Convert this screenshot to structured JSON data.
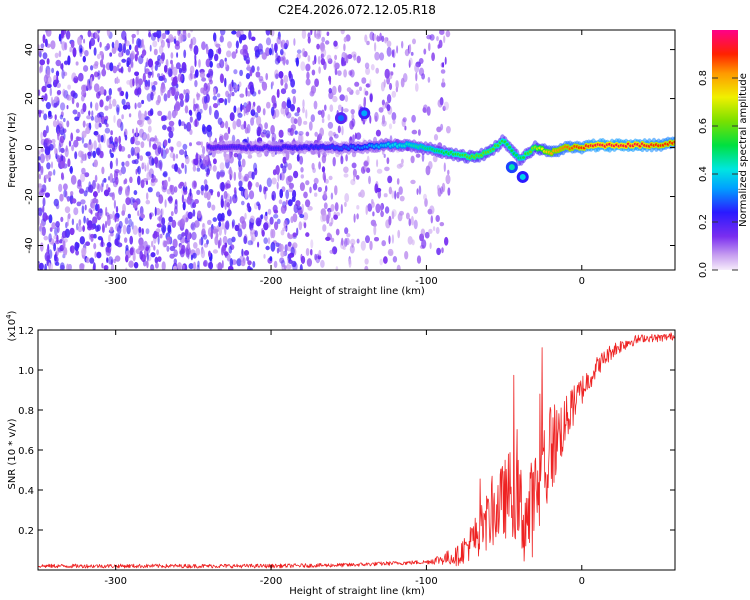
{
  "title": "C2E4.2026.072.12.05.R18",
  "chart_data": [
    {
      "type": "heatmap",
      "xlabel": "Height of straight line (km)",
      "ylabel": "Frequency (Hz)",
      "xlim": [
        -350,
        60
      ],
      "ylim": [
        -50,
        48
      ],
      "xticks": [
        -300,
        -200,
        -100,
        0
      ],
      "yticks": [
        -40,
        -20,
        0,
        20,
        40
      ],
      "colorbar": {
        "label": "Normalized spectral amplitude",
        "range": [
          0,
          1
        ],
        "ticks": [
          "0.0",
          "0.2",
          "0.4",
          "0.6",
          "0.8"
        ]
      },
      "tone_track": [
        {
          "x": -235,
          "y": 0,
          "v": 0.2
        },
        {
          "x": -200,
          "y": 0,
          "v": 0.22
        },
        {
          "x": -170,
          "y": 0,
          "v": 0.25
        },
        {
          "x": -145,
          "y": 0,
          "v": 0.3
        },
        {
          "x": -125,
          "y": 1,
          "v": 0.4
        },
        {
          "x": -110,
          "y": 1,
          "v": 0.45
        },
        {
          "x": -95,
          "y": -1,
          "v": 0.5
        },
        {
          "x": -80,
          "y": -3,
          "v": 0.55
        },
        {
          "x": -70,
          "y": -4,
          "v": 0.6
        },
        {
          "x": -60,
          "y": -2,
          "v": 0.6
        },
        {
          "x": -50,
          "y": 3,
          "v": 0.55
        },
        {
          "x": -40,
          "y": -5,
          "v": 0.5
        },
        {
          "x": -30,
          "y": 0,
          "v": 0.65
        },
        {
          "x": -20,
          "y": -2,
          "v": 0.8
        },
        {
          "x": -10,
          "y": 0,
          "v": 0.85
        },
        {
          "x": 0,
          "y": 0,
          "v": 0.9
        },
        {
          "x": 10,
          "y": 1,
          "v": 0.95
        },
        {
          "x": 20,
          "y": 1,
          "v": 0.95
        },
        {
          "x": 35,
          "y": 1,
          "v": 0.95
        },
        {
          "x": 50,
          "y": 1,
          "v": 0.9
        },
        {
          "x": 58,
          "y": 2,
          "v": 0.9
        }
      ],
      "side_features": [
        {
          "x": -155,
          "y": 12,
          "v": 0.3
        },
        {
          "x": -140,
          "y": 14,
          "v": 0.35
        },
        {
          "x": -45,
          "y": -8,
          "v": 0.45
        },
        {
          "x": -38,
          "y": -12,
          "v": 0.4
        }
      ]
    },
    {
      "type": "line",
      "xlabel": "Height of straight line (km)",
      "ylabel": "SNR (10 * v/v)",
      "scale_label": "(x10",
      "scale_exp": "4",
      "scale_close": ")",
      "xlim": [
        -350,
        60
      ],
      "ylim": [
        0,
        1.2
      ],
      "xticks": [
        -300,
        -200,
        -100,
        0
      ],
      "yticks": [
        "0.2",
        "0.4",
        "0.6",
        "0.8",
        "1.0",
        "1.2"
      ],
      "series": [
        {
          "name": "SNR",
          "color": "#ee2222",
          "envelope": {
            "x": [
              -350,
              -200,
              -150,
              -100,
              -80,
              -70,
              -60,
              -50,
              -45,
              -40,
              -35,
              -30,
              -25,
              -20,
              -10,
              0,
              10,
              20,
              30,
              40,
              50,
              60
            ],
            "y": [
              0.02,
              0.02,
              0.025,
              0.04,
              0.07,
              0.15,
              0.25,
              0.35,
              0.4,
              0.3,
              0.25,
              0.35,
              0.5,
              0.6,
              0.75,
              0.9,
              1.02,
              1.1,
              1.14,
              1.16,
              1.16,
              1.17
            ]
          },
          "noise": {
            "x": [
              -350,
              -100,
              -80,
              -60,
              -50,
              -40,
              -30,
              -25,
              -20,
              -10,
              0,
              10,
              20,
              30,
              40,
              60
            ],
            "y": [
              0.01,
              0.01,
              0.05,
              0.15,
              0.2,
              0.25,
              0.25,
              0.3,
              0.25,
              0.12,
              0.08,
              0.05,
              0.04,
              0.03,
              0.02,
              0.02
            ]
          }
        }
      ]
    }
  ]
}
